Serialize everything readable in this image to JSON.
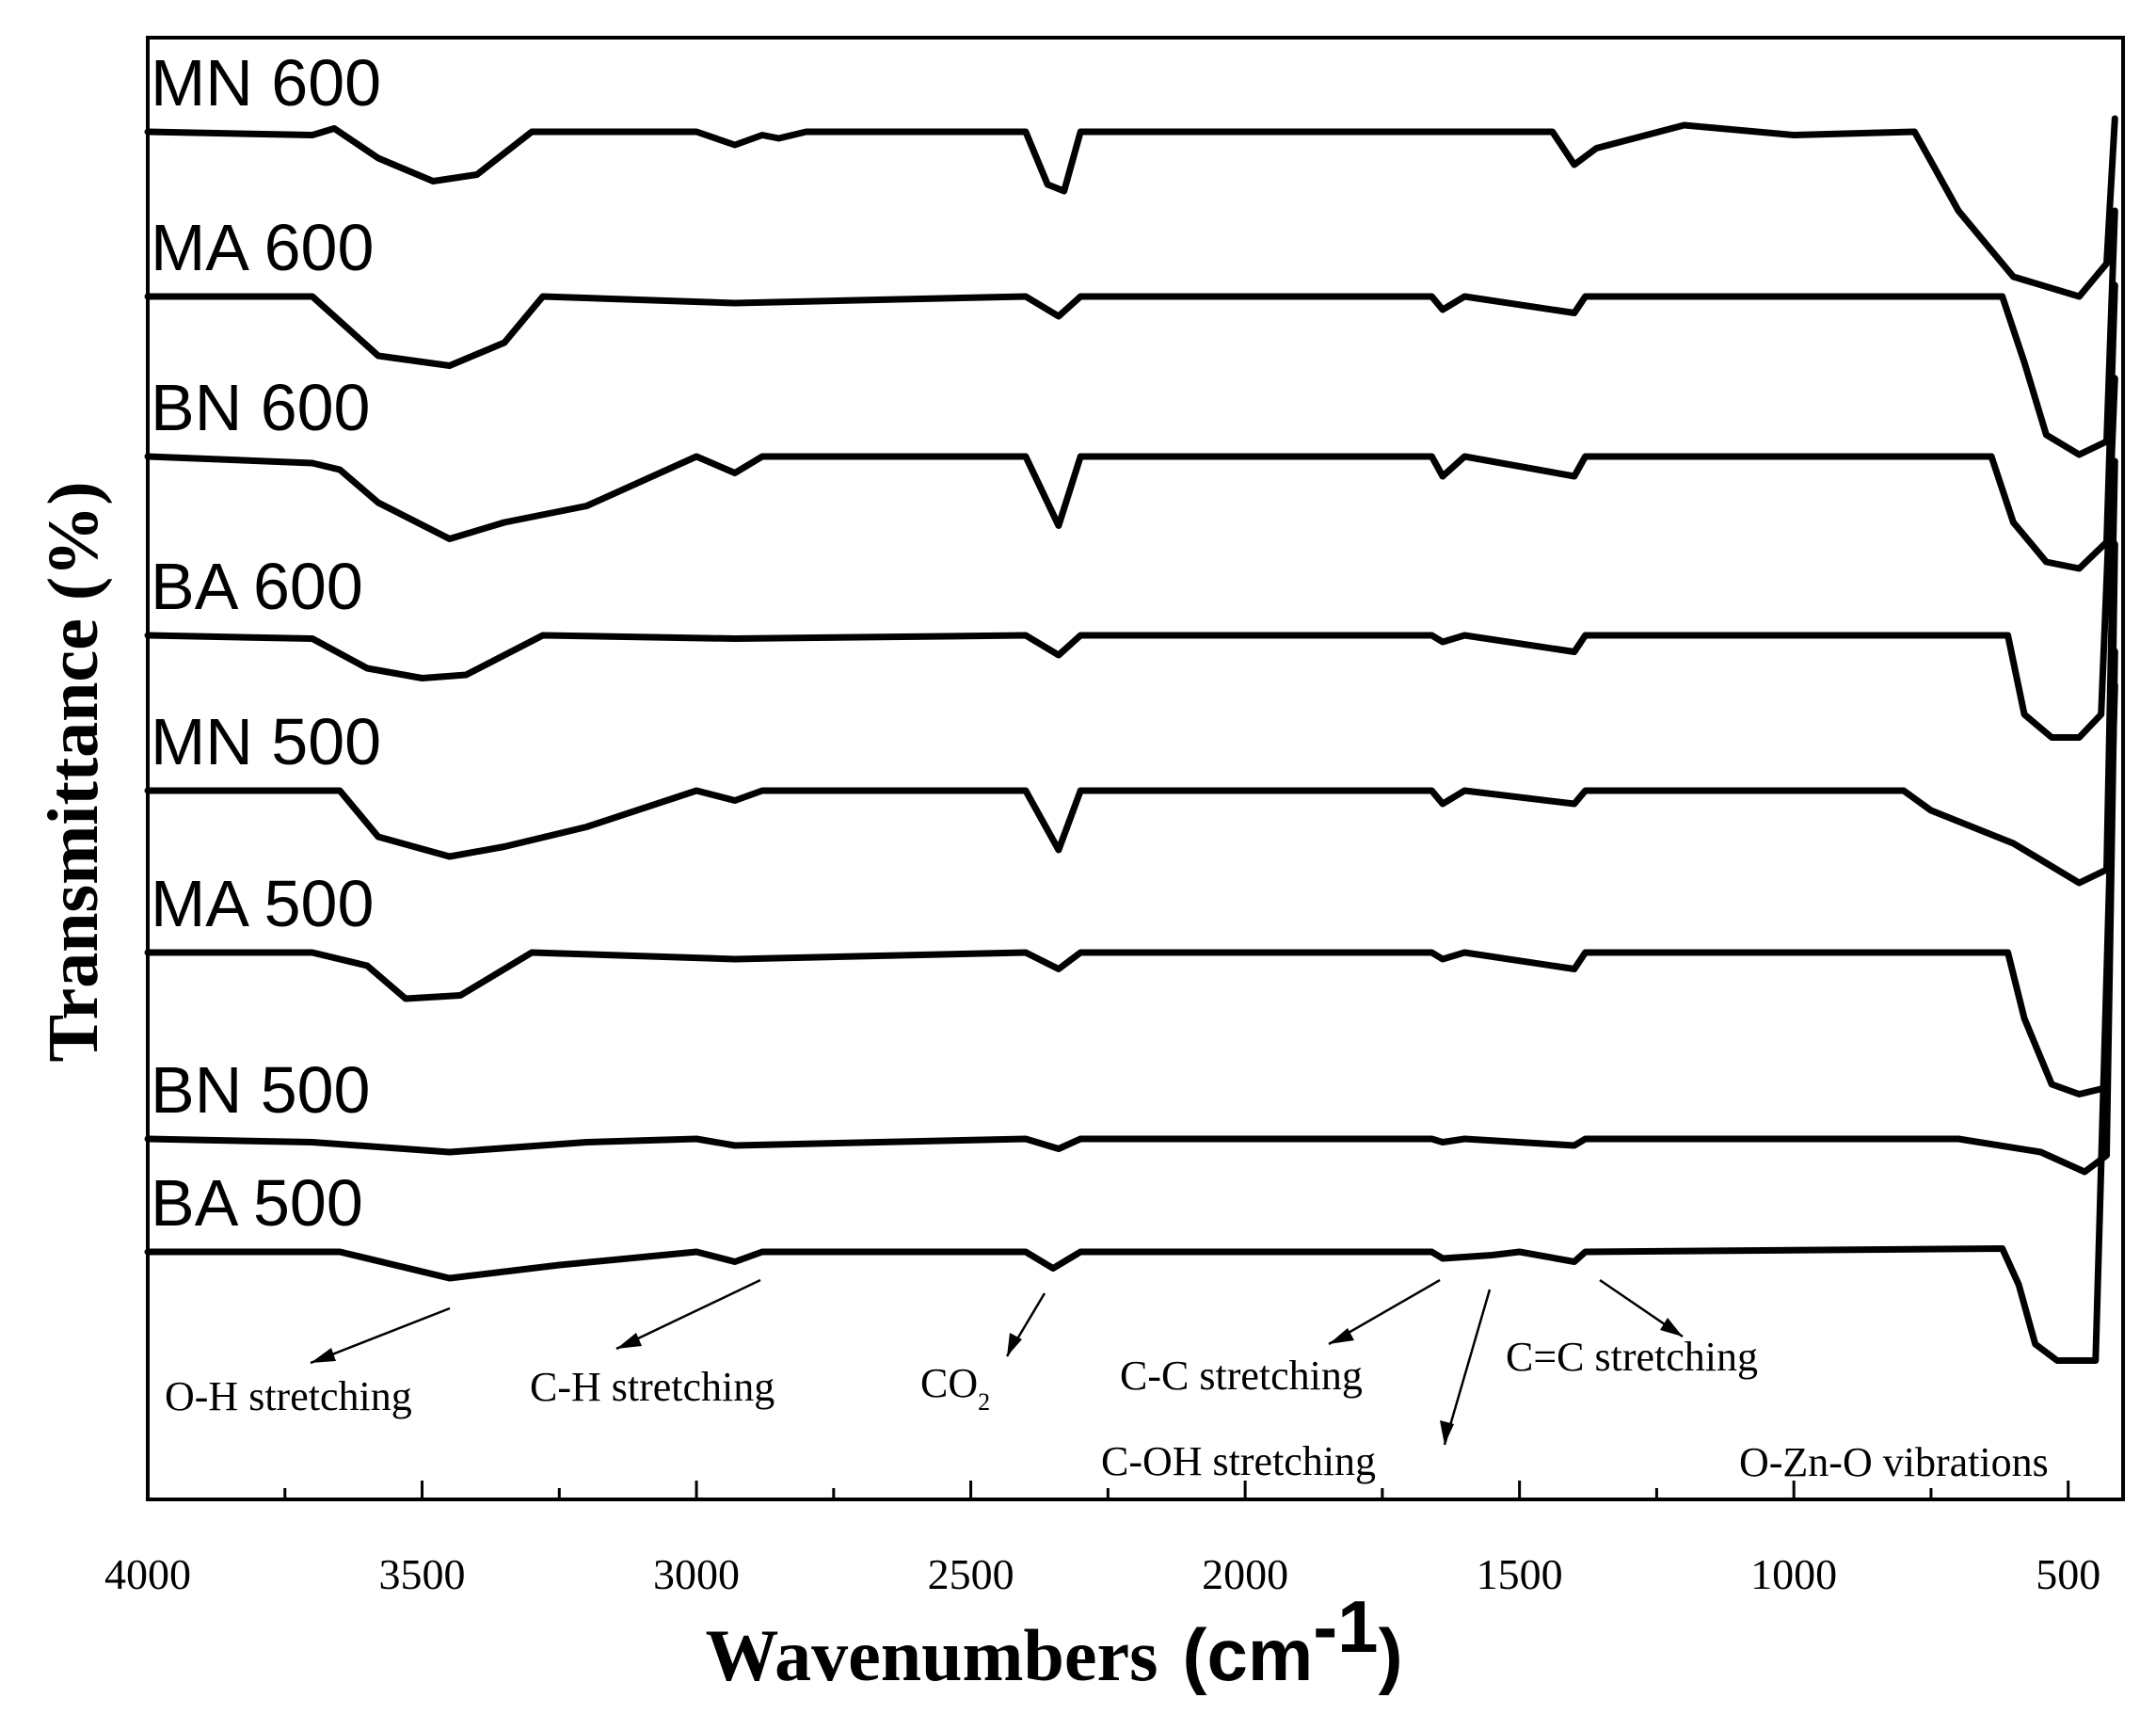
{
  "chart_data": {
    "type": "line",
    "title": "",
    "xlabel": "Wavenumbers",
    "xlabel_unit": "(cm",
    "xlabel_unit_sup": "-1",
    "xlabel_unit_close": ")",
    "ylabel": "Transmittance (%)",
    "xlim": [
      4000,
      400
    ],
    "x_ticks": [
      "4000",
      "3500",
      "3000",
      "2500",
      "2000",
      "1500",
      "1000",
      "500"
    ],
    "grid": false,
    "legend": "inline labels above each trace",
    "series": [
      {
        "name": "MN 600",
        "values": [
          [
            4000,
            0
          ],
          [
            3700,
            -0.05
          ],
          [
            3660,
            0.05
          ],
          [
            3580,
            -0.4
          ],
          [
            3480,
            -0.75
          ],
          [
            3400,
            -0.65
          ],
          [
            3300,
            0
          ],
          [
            3000,
            0
          ],
          [
            2930,
            -0.2
          ],
          [
            2880,
            -0.05
          ],
          [
            2850,
            -0.1
          ],
          [
            2800,
            0
          ],
          [
            2400,
            0
          ],
          [
            2360,
            -0.8
          ],
          [
            2330,
            -0.9
          ],
          [
            2300,
            0
          ],
          [
            1440,
            0
          ],
          [
            1400,
            -0.5
          ],
          [
            1360,
            -0.25
          ],
          [
            1200,
            0.1
          ],
          [
            1000,
            -0.05
          ],
          [
            780,
            0
          ],
          [
            700,
            -1.2
          ],
          [
            600,
            -2.2
          ],
          [
            480,
            -2.5
          ],
          [
            430,
            -2.0
          ],
          [
            415,
            0.2
          ]
        ]
      },
      {
        "name": "MA 600",
        "values": [
          [
            4000,
            0
          ],
          [
            3700,
            0
          ],
          [
            3580,
            -0.9
          ],
          [
            3450,
            -1.05
          ],
          [
            3350,
            -0.7
          ],
          [
            3280,
            0
          ],
          [
            2930,
            -0.1
          ],
          [
            2400,
            0
          ],
          [
            2340,
            -0.3
          ],
          [
            2300,
            0
          ],
          [
            1660,
            0
          ],
          [
            1640,
            -0.2
          ],
          [
            1600,
            0
          ],
          [
            1400,
            -0.25
          ],
          [
            1380,
            0
          ],
          [
            620,
            0
          ],
          [
            580,
            -1.0
          ],
          [
            540,
            -2.1
          ],
          [
            480,
            -2.4
          ],
          [
            430,
            -2.2
          ],
          [
            415,
            1.3
          ]
        ]
      },
      {
        "name": "BN 600",
        "values": [
          [
            4000,
            0
          ],
          [
            3700,
            -0.1
          ],
          [
            3650,
            -0.2
          ],
          [
            3580,
            -0.7
          ],
          [
            3450,
            -1.25
          ],
          [
            3350,
            -1.0
          ],
          [
            3200,
            -0.75
          ],
          [
            3000,
            0
          ],
          [
            2930,
            -0.25
          ],
          [
            2880,
            0
          ],
          [
            2400,
            0
          ],
          [
            2340,
            -1.05
          ],
          [
            2300,
            0
          ],
          [
            1660,
            0
          ],
          [
            1640,
            -0.3
          ],
          [
            1600,
            0
          ],
          [
            1400,
            -0.3
          ],
          [
            1380,
            0
          ],
          [
            640,
            0
          ],
          [
            600,
            -1.0
          ],
          [
            540,
            -1.6
          ],
          [
            480,
            -1.7
          ],
          [
            430,
            -1.3
          ],
          [
            415,
            2.6
          ]
        ]
      },
      {
        "name": "BA 600",
        "values": [
          [
            4000,
            0
          ],
          [
            3700,
            -0.05
          ],
          [
            3600,
            -0.5
          ],
          [
            3500,
            -0.65
          ],
          [
            3420,
            -0.6
          ],
          [
            3280,
            0
          ],
          [
            2930,
            -0.05
          ],
          [
            2400,
            0
          ],
          [
            2340,
            -0.3
          ],
          [
            2300,
            0
          ],
          [
            1660,
            0
          ],
          [
            1640,
            -0.1
          ],
          [
            1600,
            0
          ],
          [
            1400,
            -0.25
          ],
          [
            1380,
            0
          ],
          [
            610,
            0
          ],
          [
            580,
            -1.2
          ],
          [
            530,
            -1.55
          ],
          [
            480,
            -1.55
          ],
          [
            440,
            -1.2
          ],
          [
            415,
            3.9
          ]
        ]
      },
      {
        "name": "MN 500",
        "values": [
          [
            4000,
            0
          ],
          [
            3650,
            0
          ],
          [
            3580,
            -0.7
          ],
          [
            3450,
            -1.0
          ],
          [
            3350,
            -0.85
          ],
          [
            3200,
            -0.55
          ],
          [
            3000,
            0
          ],
          [
            2930,
            -0.15
          ],
          [
            2880,
            0
          ],
          [
            2400,
            0
          ],
          [
            2340,
            -0.9
          ],
          [
            2300,
            0
          ],
          [
            1660,
            0
          ],
          [
            1640,
            -0.2
          ],
          [
            1600,
            0
          ],
          [
            1400,
            -0.2
          ],
          [
            1380,
            0
          ],
          [
            800,
            0
          ],
          [
            750,
            -0.3
          ],
          [
            600,
            -0.8
          ],
          [
            480,
            -1.4
          ],
          [
            430,
            -1.2
          ],
          [
            415,
            5.0
          ]
        ]
      },
      {
        "name": "MA 500",
        "values": [
          [
            4000,
            0
          ],
          [
            3700,
            0
          ],
          [
            3600,
            -0.2
          ],
          [
            3530,
            -0.7
          ],
          [
            3430,
            -0.65
          ],
          [
            3300,
            0
          ],
          [
            2930,
            -0.1
          ],
          [
            2400,
            0
          ],
          [
            2340,
            -0.25
          ],
          [
            2300,
            0
          ],
          [
            1660,
            0
          ],
          [
            1640,
            -0.1
          ],
          [
            1600,
            0
          ],
          [
            1400,
            -0.25
          ],
          [
            1380,
            0
          ],
          [
            610,
            0
          ],
          [
            580,
            -1.0
          ],
          [
            530,
            -2.0
          ],
          [
            480,
            -2.15
          ],
          [
            430,
            -2.05
          ],
          [
            415,
            6.2
          ]
        ]
      },
      {
        "name": "BN 500",
        "values": [
          [
            4000,
            0
          ],
          [
            3700,
            -0.05
          ],
          [
            3450,
            -0.2
          ],
          [
            3200,
            -0.05
          ],
          [
            3000,
            0
          ],
          [
            2930,
            -0.1
          ],
          [
            2400,
            0
          ],
          [
            2340,
            -0.15
          ],
          [
            2300,
            0
          ],
          [
            1660,
            0
          ],
          [
            1640,
            -0.05
          ],
          [
            1600,
            0
          ],
          [
            1400,
            -0.1
          ],
          [
            1380,
            0
          ],
          [
            700,
            0
          ],
          [
            550,
            -0.2
          ],
          [
            470,
            -0.5
          ],
          [
            430,
            -0.25
          ],
          [
            415,
            7.4
          ]
        ]
      },
      {
        "name": "BA 500",
        "values": [
          [
            4000,
            0
          ],
          [
            3650,
            0
          ],
          [
            3450,
            -0.4
          ],
          [
            3250,
            -0.2
          ],
          [
            3000,
            0
          ],
          [
            2930,
            -0.15
          ],
          [
            2880,
            0
          ],
          [
            2400,
            0
          ],
          [
            2350,
            -0.25
          ],
          [
            2300,
            0
          ],
          [
            1660,
            0
          ],
          [
            1640,
            -0.1
          ],
          [
            1550,
            -0.05
          ],
          [
            1500,
            0
          ],
          [
            1400,
            -0.15
          ],
          [
            1380,
            0
          ],
          [
            620,
            0.05
          ],
          [
            590,
            -0.5
          ],
          [
            560,
            -1.4
          ],
          [
            520,
            -1.65
          ],
          [
            450,
            -1.65
          ],
          [
            415,
            8.6
          ]
        ]
      }
    ],
    "annotations": [
      {
        "text": "O-H stretching",
        "at": 3450
      },
      {
        "text": "C-H stretching",
        "at": 2880
      },
      {
        "text": "CO",
        "sub": "2",
        "at": 2360
      },
      {
        "text": "C-C stretching",
        "at": 1640
      },
      {
        "text": "C-OH stretching",
        "at": 1560
      },
      {
        "text": "C=C stretching",
        "at": 1390
      },
      {
        "text": "O-Zn-O vibrations",
        "at": 500
      }
    ]
  }
}
